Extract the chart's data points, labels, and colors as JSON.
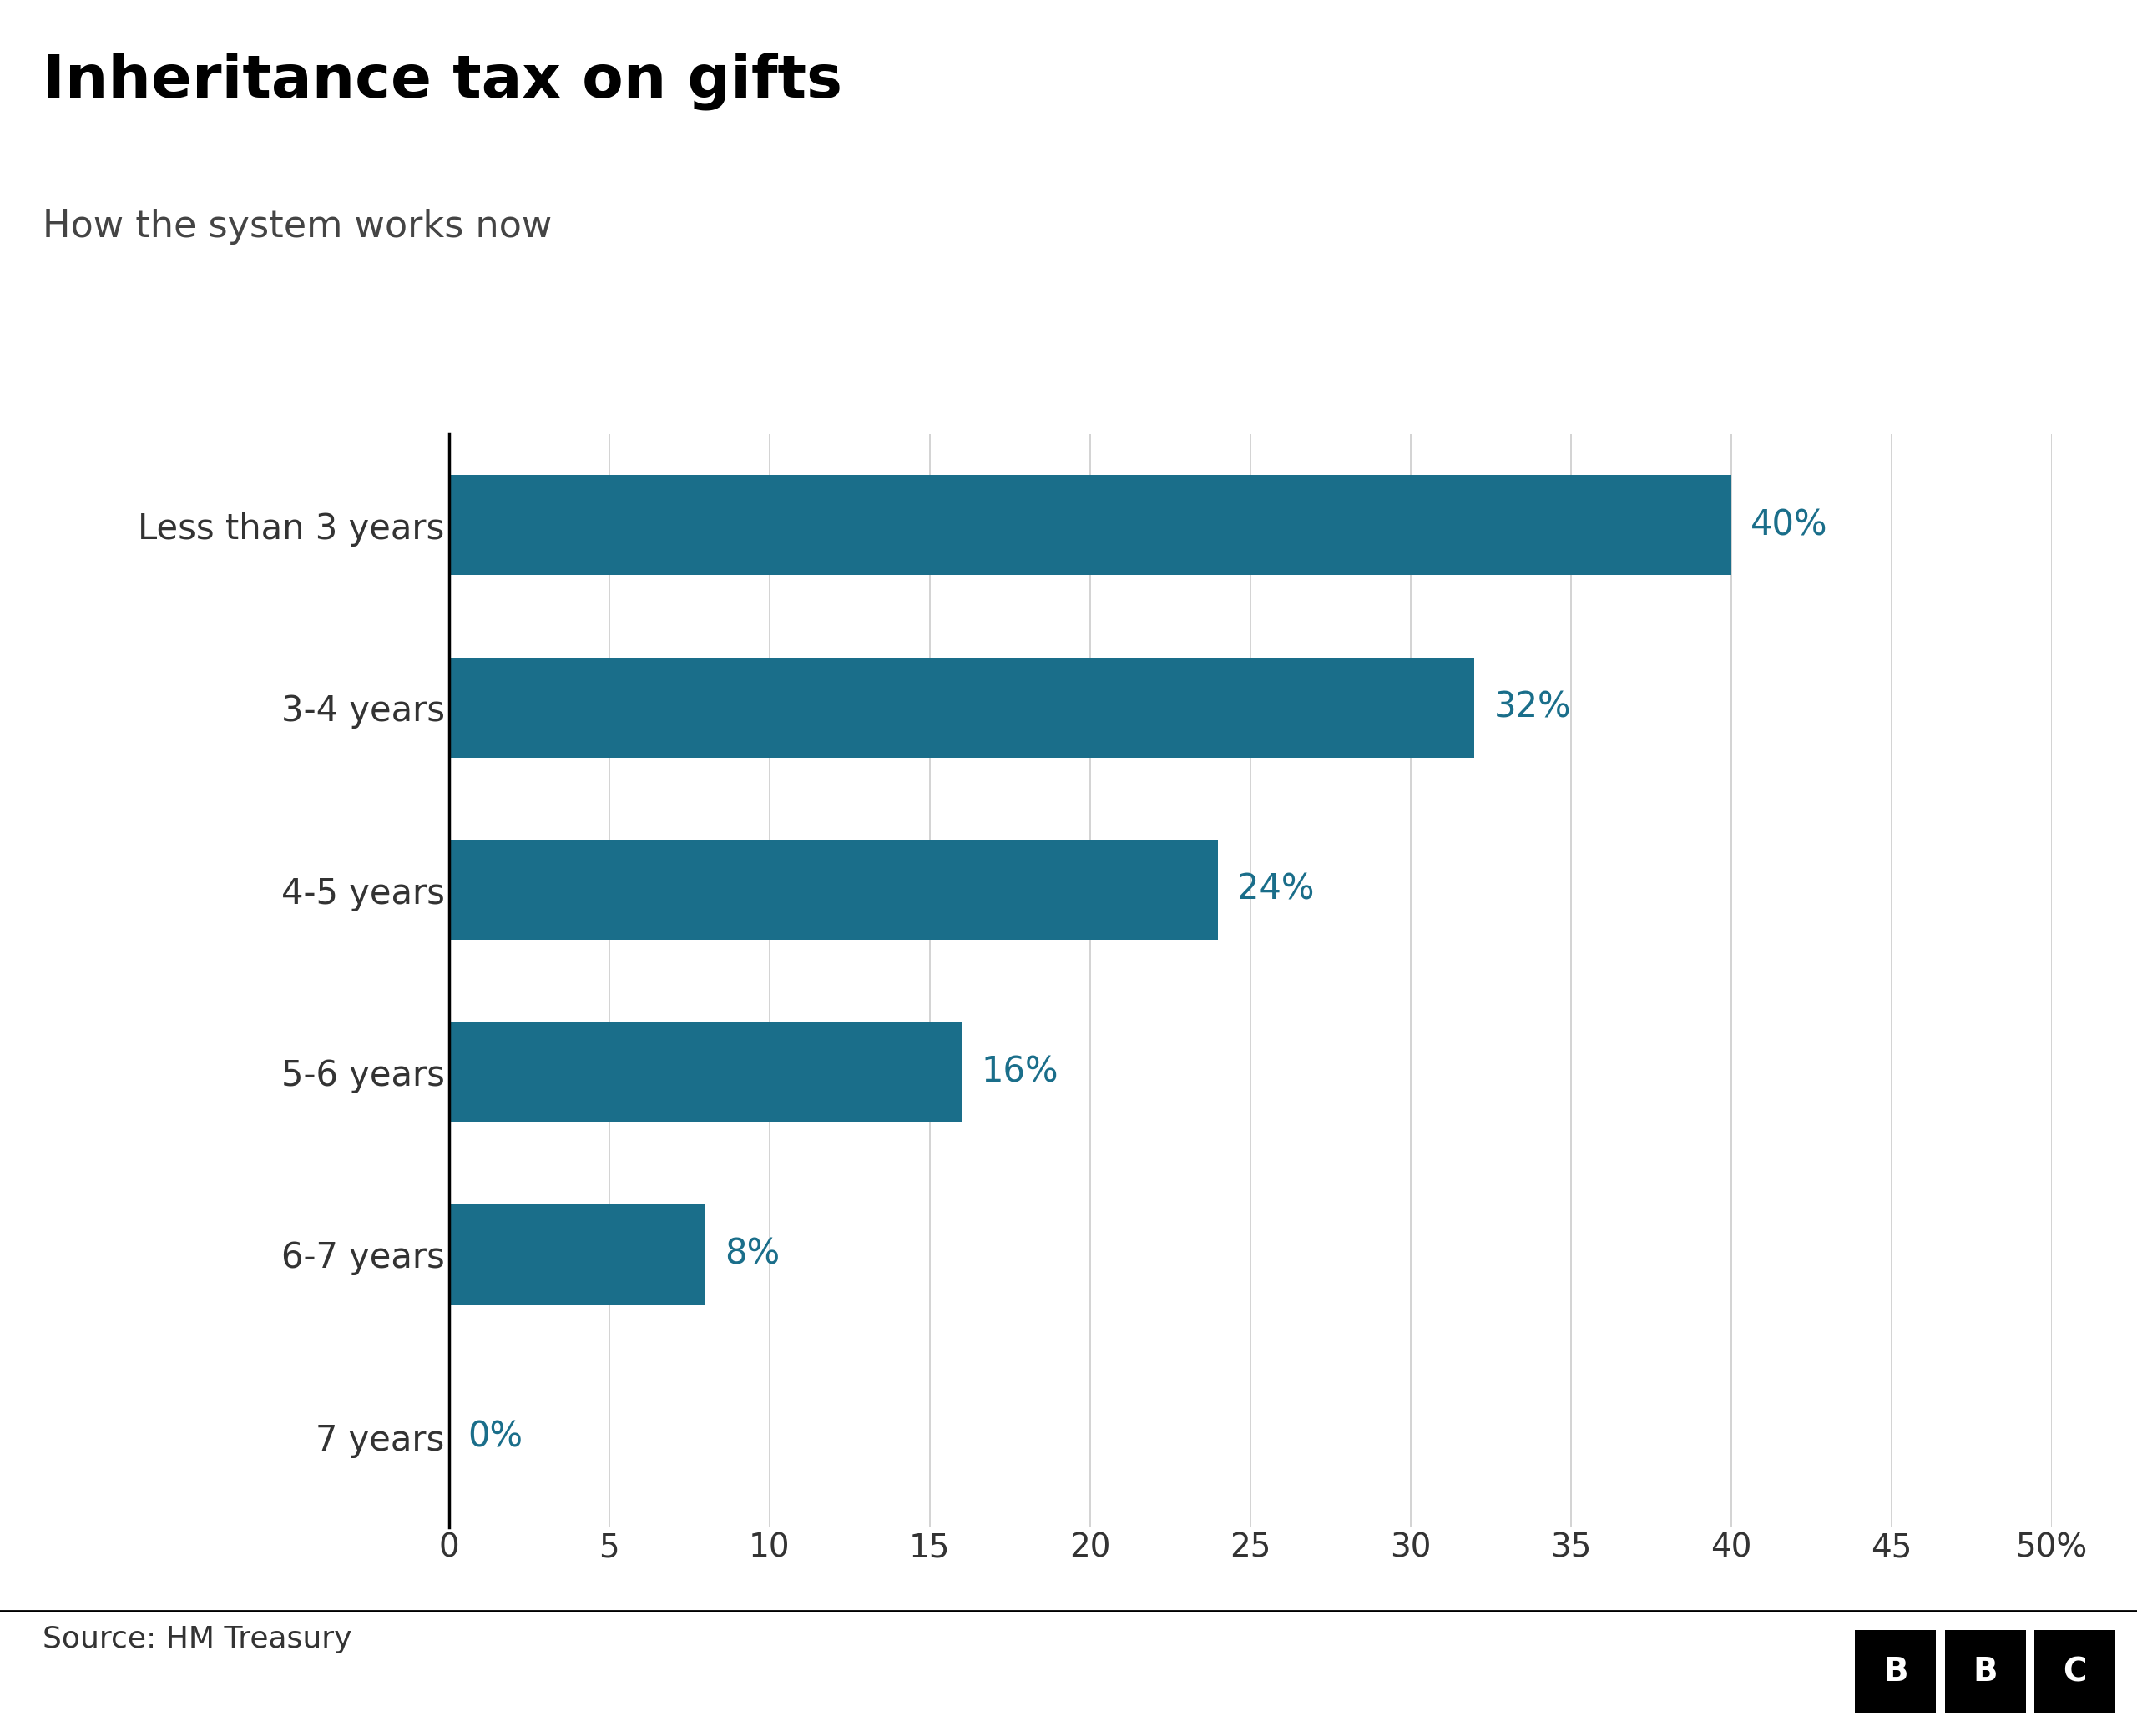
{
  "title": "Inheritance tax on gifts",
  "subtitle": "How the system works now",
  "categories": [
    "Less than 3 years",
    "3-4 years",
    "4-5 years",
    "5-6 years",
    "6-7 years",
    "7 years"
  ],
  "values": [
    40,
    32,
    24,
    16,
    8,
    0
  ],
  "labels": [
    "40%",
    "32%",
    "24%",
    "16%",
    "8%",
    "0%"
  ],
  "bar_color": "#1a6e8a",
  "label_color": "#1a6e8a",
  "background_color": "#ffffff",
  "title_fontsize": 52,
  "subtitle_fontsize": 32,
  "label_fontsize": 30,
  "tick_fontsize": 28,
  "ytick_fontsize": 30,
  "source_text": "Source: HM Treasury",
  "source_fontsize": 26,
  "xlim": [
    0,
    50
  ],
  "xticks": [
    0,
    5,
    10,
    15,
    20,
    25,
    30,
    35,
    40,
    45,
    50
  ],
  "xtick_labels": [
    "0",
    "5",
    "10",
    "15",
    "20",
    "25",
    "30",
    "35",
    "40",
    "45",
    "50%"
  ],
  "grid_color": "#cccccc",
  "axis_line_color": "#000000",
  "footer_line_color": "#000000",
  "bbc_bg_color": "#000000",
  "bbc_text_color": "#ffffff"
}
